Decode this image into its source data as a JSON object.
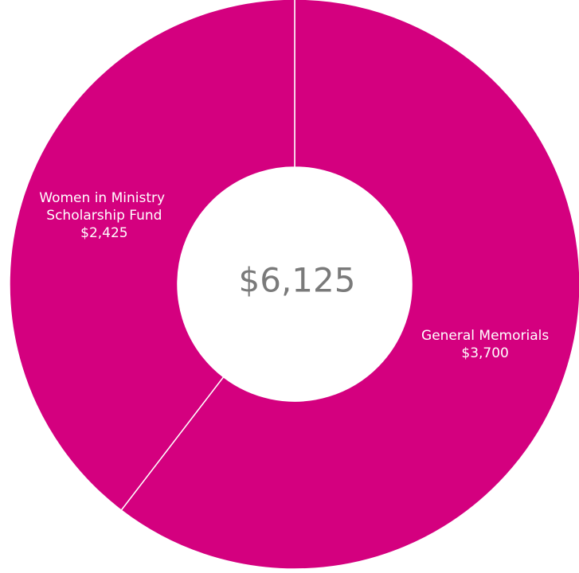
{
  "chart_data": {
    "type": "donut",
    "categories": [
      "General Memorials",
      "Women in Ministry Scholarship Fund"
    ],
    "values": [
      3700,
      2425
    ],
    "value_labels": [
      "$3,700",
      "$2,425"
    ],
    "colors": [
      "#d4007f",
      "#d4007f"
    ],
    "center_text": "$6,125"
  }
}
